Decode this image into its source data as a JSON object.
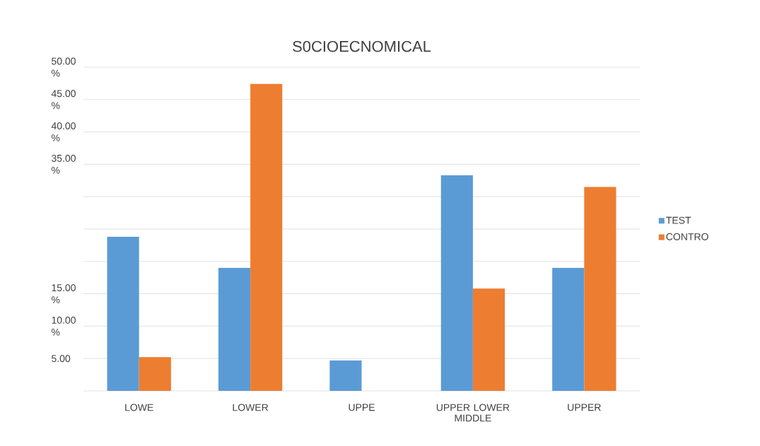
{
  "chart_data": {
    "type": "bar",
    "title": "S0CIOECNOMICAL",
    "categories": [
      "LOWE",
      "LOWER",
      "UPPE",
      "UPPER LOWER MIDDLE",
      "UPPER"
    ],
    "series": [
      {
        "name": "TEST",
        "color": "#5b9bd5",
        "values": [
          23.8,
          19.0,
          4.7,
          33.3,
          19.0
        ]
      },
      {
        "name": "CONTRO",
        "color": "#ed7d31",
        "values": [
          5.2,
          47.4,
          null,
          15.8,
          31.5
        ]
      }
    ],
    "ylim": [
      0,
      50
    ],
    "yticks": [
      {
        "value": 0,
        "label": null
      },
      {
        "value": 5,
        "label": "5.00"
      },
      {
        "value": 10,
        "label": "10.00 %"
      },
      {
        "value": 15,
        "label": "15.00 %"
      },
      {
        "value": 20,
        "label": null
      },
      {
        "value": 25,
        "label": null
      },
      {
        "value": 30,
        "label": null
      },
      {
        "value": 35,
        "label": "35.00 %"
      },
      {
        "value": 40,
        "label": "40.00 %"
      },
      {
        "value": 45,
        "label": "45.00 %"
      },
      {
        "value": 50,
        "label": "50.00 %"
      }
    ],
    "grid": "y",
    "legend": "right"
  }
}
